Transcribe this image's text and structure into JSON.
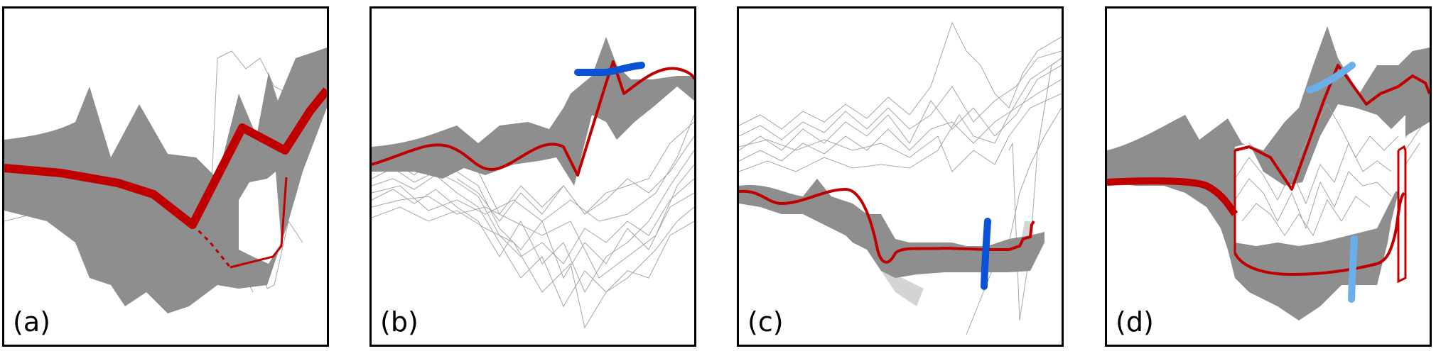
{
  "panels": [
    {
      "label": "(a)"
    },
    {
      "label": "(b)"
    },
    {
      "label": "(c)"
    },
    {
      "label": "(d)"
    }
  ],
  "colors": {
    "band": "#8e8e8e",
    "thin_lines": "#a6a6a6",
    "red_curve": "#c00000",
    "blue_stroke": "#0a52d6",
    "light_blue_stroke": "#6aaeea",
    "border": "#000000"
  }
}
